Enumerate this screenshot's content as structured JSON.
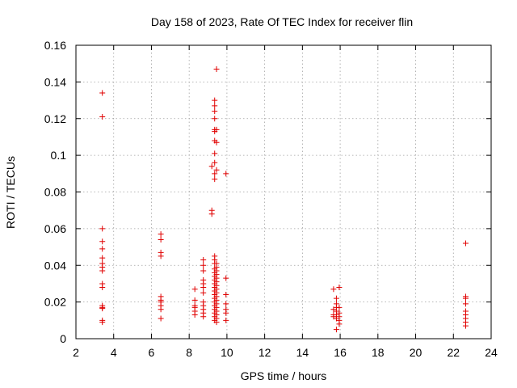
{
  "chart_data": {
    "type": "scatter",
    "title": "Day 158 of 2023, Rate Of TEC Index for receiver flin",
    "xlabel": "GPS time / hours",
    "ylabel": "ROTI / TECUs",
    "xlim": [
      2,
      24
    ],
    "ylim": [
      0,
      0.16
    ],
    "xticks": [
      "2",
      "4",
      "6",
      "8",
      "10",
      "12",
      "14",
      "16",
      "18",
      "20",
      "22",
      "24"
    ],
    "yticks": [
      "0",
      "0.02",
      "0.04",
      "0.06",
      "0.08",
      "0.1",
      "0.12",
      "0.14",
      "0.16"
    ],
    "grid": true,
    "marker": "plus",
    "color": "#e00000",
    "series": [
      {
        "points": [
          [
            3.4,
            0.134
          ],
          [
            3.4,
            0.121
          ],
          [
            3.4,
            0.06
          ],
          [
            3.4,
            0.053
          ],
          [
            3.4,
            0.049
          ],
          [
            3.4,
            0.044
          ],
          [
            3.4,
            0.041
          ],
          [
            3.4,
            0.039
          ],
          [
            3.4,
            0.037
          ],
          [
            3.4,
            0.03
          ],
          [
            3.4,
            0.028
          ],
          [
            3.4,
            0.018
          ],
          [
            3.4,
            0.017
          ],
          [
            3.4,
            0.0165
          ],
          [
            3.4,
            0.01
          ],
          [
            3.4,
            0.009
          ],
          [
            6.5,
            0.057
          ],
          [
            6.5,
            0.054
          ],
          [
            6.5,
            0.047
          ],
          [
            6.5,
            0.045
          ],
          [
            6.5,
            0.023
          ],
          [
            6.5,
            0.021
          ],
          [
            6.5,
            0.02
          ],
          [
            6.5,
            0.018
          ],
          [
            6.5,
            0.016
          ],
          [
            6.5,
            0.011
          ],
          [
            8.3,
            0.027
          ],
          [
            8.3,
            0.021
          ],
          [
            8.3,
            0.018
          ],
          [
            8.3,
            0.017
          ],
          [
            8.3,
            0.015
          ],
          [
            8.3,
            0.013
          ],
          [
            8.75,
            0.043
          ],
          [
            8.75,
            0.04
          ],
          [
            8.75,
            0.037
          ],
          [
            8.75,
            0.032
          ],
          [
            8.75,
            0.03
          ],
          [
            8.75,
            0.028
          ],
          [
            8.75,
            0.025
          ],
          [
            8.75,
            0.02
          ],
          [
            8.75,
            0.018
          ],
          [
            8.75,
            0.016
          ],
          [
            8.75,
            0.014
          ],
          [
            8.75,
            0.012
          ],
          [
            9.2,
            0.094
          ],
          [
            9.2,
            0.07
          ],
          [
            9.2,
            0.068
          ],
          [
            9.35,
            0.13
          ],
          [
            9.35,
            0.127
          ],
          [
            9.35,
            0.124
          ],
          [
            9.35,
            0.12
          ],
          [
            9.35,
            0.114
          ],
          [
            9.35,
            0.113
          ],
          [
            9.35,
            0.108
          ],
          [
            9.35,
            0.101
          ],
          [
            9.35,
            0.096
          ],
          [
            9.35,
            0.09
          ],
          [
            9.35,
            0.087
          ],
          [
            9.35,
            0.045
          ],
          [
            9.35,
            0.043
          ],
          [
            9.35,
            0.041
          ],
          [
            9.35,
            0.038
          ],
          [
            9.35,
            0.036
          ],
          [
            9.35,
            0.034
          ],
          [
            9.35,
            0.032
          ],
          [
            9.35,
            0.03
          ],
          [
            9.35,
            0.028
          ],
          [
            9.35,
            0.026
          ],
          [
            9.35,
            0.024
          ],
          [
            9.35,
            0.022
          ],
          [
            9.35,
            0.02
          ],
          [
            9.35,
            0.018
          ],
          [
            9.35,
            0.016
          ],
          [
            9.35,
            0.014
          ],
          [
            9.35,
            0.012
          ],
          [
            9.35,
            0.01
          ],
          [
            9.45,
            0.147
          ],
          [
            9.45,
            0.114
          ],
          [
            9.45,
            0.107
          ],
          [
            9.45,
            0.092
          ],
          [
            9.45,
            0.041
          ],
          [
            9.45,
            0.039
          ],
          [
            9.45,
            0.037
          ],
          [
            9.45,
            0.035
          ],
          [
            9.45,
            0.033
          ],
          [
            9.45,
            0.031
          ],
          [
            9.45,
            0.029
          ],
          [
            9.45,
            0.027
          ],
          [
            9.45,
            0.025
          ],
          [
            9.45,
            0.023
          ],
          [
            9.45,
            0.021
          ],
          [
            9.45,
            0.019
          ],
          [
            9.45,
            0.017
          ],
          [
            9.45,
            0.015
          ],
          [
            9.45,
            0.013
          ],
          [
            9.45,
            0.011
          ],
          [
            9.45,
            0.009
          ],
          [
            9.95,
            0.09
          ],
          [
            9.95,
            0.033
          ],
          [
            9.95,
            0.024
          ],
          [
            9.95,
            0.019
          ],
          [
            9.95,
            0.016
          ],
          [
            9.95,
            0.014
          ],
          [
            9.95,
            0.01
          ],
          [
            15.65,
            0.027
          ],
          [
            15.65,
            0.016
          ],
          [
            15.65,
            0.013
          ],
          [
            15.65,
            0.012
          ],
          [
            15.8,
            0.022
          ],
          [
            15.8,
            0.019
          ],
          [
            15.8,
            0.017
          ],
          [
            15.8,
            0.015
          ],
          [
            15.8,
            0.013
          ],
          [
            15.8,
            0.011
          ],
          [
            15.8,
            0.005
          ],
          [
            15.95,
            0.028
          ],
          [
            15.95,
            0.017
          ],
          [
            15.95,
            0.014
          ],
          [
            15.95,
            0.012
          ],
          [
            15.95,
            0.01
          ],
          [
            15.95,
            0.008
          ],
          [
            22.65,
            0.052
          ],
          [
            22.65,
            0.023
          ],
          [
            22.65,
            0.022
          ],
          [
            22.65,
            0.019
          ],
          [
            22.65,
            0.015
          ],
          [
            22.65,
            0.013
          ],
          [
            22.65,
            0.011
          ],
          [
            22.65,
            0.009
          ],
          [
            22.65,
            0.007
          ]
        ]
      }
    ]
  }
}
